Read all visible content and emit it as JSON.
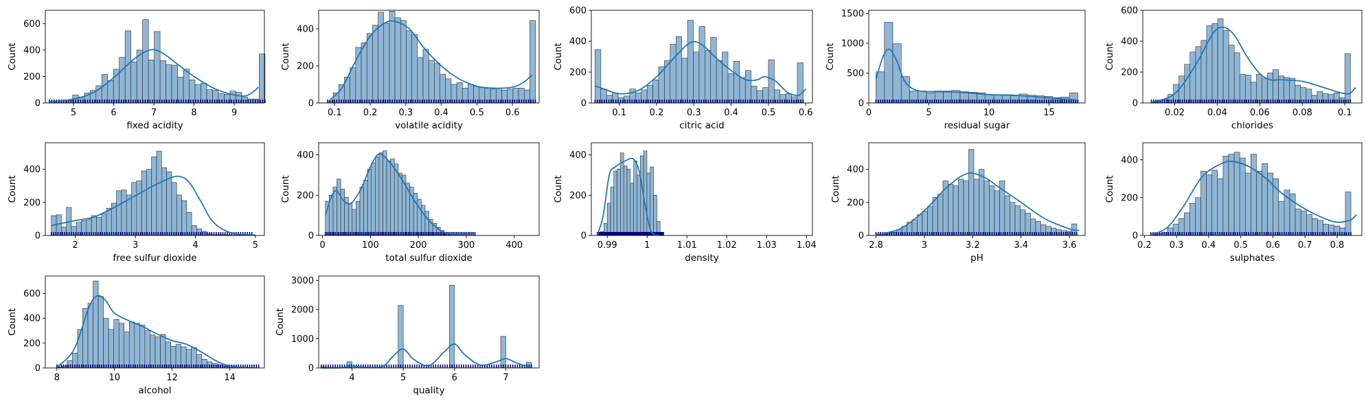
{
  "colors": {
    "bar_fill": "#8fb6d6",
    "bar_edge": "#2b2b2b",
    "kde": "#1f77b4",
    "rug": "#000080"
  },
  "chart_data": [
    {
      "type": "bar",
      "xlabel": "fixed acidity",
      "ylabel": "Count",
      "xlim": [
        4.3,
        9.75
      ],
      "ylim": [
        0,
        700
      ],
      "xticks": [
        5,
        6,
        7,
        8,
        9
      ],
      "yticks": [
        0,
        200,
        400,
        600
      ],
      "bin_start": 4.4,
      "bin_width": 0.145,
      "values": [
        10,
        15,
        18,
        20,
        60,
        45,
        75,
        95,
        130,
        215,
        170,
        255,
        345,
        545,
        310,
        400,
        630,
        325,
        540,
        320,
        290,
        285,
        195,
        255,
        175,
        140,
        150,
        100,
        95,
        70,
        65,
        90,
        80,
        45,
        30,
        30,
        370
      ],
      "kde": [
        [
          4.4,
          10
        ],
        [
          5.0,
          30
        ],
        [
          5.5,
          80
        ],
        [
          6.0,
          190
        ],
        [
          6.5,
          330
        ],
        [
          6.9,
          400
        ],
        [
          7.2,
          380
        ],
        [
          7.6,
          290
        ],
        [
          8.0,
          200
        ],
        [
          8.5,
          110
        ],
        [
          9.0,
          60
        ],
        [
          9.3,
          55
        ],
        [
          9.5,
          90
        ],
        [
          9.6,
          120
        ]
      ]
    },
    {
      "type": "bar",
      "xlabel": "volatile acidity",
      "ylabel": "Count",
      "xlim": [
        0.055,
        0.675
      ],
      "ylim": [
        0,
        500
      ],
      "xticks": [
        0.1,
        0.2,
        0.3,
        0.4,
        0.5,
        0.6
      ],
      "yticks": [
        0,
        200,
        400
      ],
      "bin_start": 0.08,
      "bin_width": 0.0158,
      "values": [
        10,
        55,
        100,
        140,
        190,
        300,
        325,
        375,
        420,
        490,
        430,
        495,
        460,
        445,
        390,
        370,
        245,
        290,
        230,
        215,
        155,
        130,
        100,
        110,
        80,
        100,
        90,
        85,
        80,
        75,
        80,
        70,
        75,
        80,
        80,
        70,
        445
      ],
      "kde": [
        [
          0.08,
          5
        ],
        [
          0.12,
          80
        ],
        [
          0.16,
          230
        ],
        [
          0.2,
          360
        ],
        [
          0.24,
          430
        ],
        [
          0.27,
          440
        ],
        [
          0.31,
          400
        ],
        [
          0.35,
          300
        ],
        [
          0.4,
          200
        ],
        [
          0.45,
          130
        ],
        [
          0.5,
          90
        ],
        [
          0.55,
          80
        ],
        [
          0.6,
          85
        ],
        [
          0.63,
          110
        ],
        [
          0.655,
          150
        ]
      ]
    },
    {
      "type": "bar",
      "xlabel": "citric acid",
      "ylabel": "Count",
      "xlim": [
        0.025,
        0.618
      ],
      "ylim": [
        0,
        600
      ],
      "xticks": [
        0.1,
        0.2,
        0.3,
        0.4,
        0.5,
        0.6
      ],
      "yticks": [
        0,
        200,
        400,
        600
      ],
      "bin_start": 0.035,
      "bin_width": 0.0155,
      "values": [
        345,
        90,
        50,
        65,
        35,
        45,
        90,
        65,
        85,
        115,
        150,
        235,
        275,
        380,
        430,
        290,
        535,
        330,
        495,
        340,
        425,
        275,
        330,
        190,
        270,
        165,
        210,
        110,
        80,
        100,
        280,
        85,
        55,
        60,
        40,
        260
      ],
      "kde": [
        [
          0.035,
          110
        ],
        [
          0.06,
          90
        ],
        [
          0.1,
          60
        ],
        [
          0.15,
          80
        ],
        [
          0.2,
          170
        ],
        [
          0.25,
          300
        ],
        [
          0.29,
          390
        ],
        [
          0.32,
          380
        ],
        [
          0.36,
          290
        ],
        [
          0.4,
          210
        ],
        [
          0.44,
          150
        ],
        [
          0.47,
          150
        ],
        [
          0.49,
          170
        ],
        [
          0.52,
          140
        ],
        [
          0.55,
          70
        ],
        [
          0.58,
          50
        ],
        [
          0.6,
          90
        ]
      ]
    },
    {
      "type": "bar",
      "xlabel": "residual sugar",
      "ylabel": "Count",
      "xlim": [
        0,
        18
      ],
      "ylim": [
        0,
        1550
      ],
      "xticks": [
        0,
        5,
        10,
        15
      ],
      "yticks": [
        0,
        500,
        1000,
        1500
      ],
      "bin_start": 0.6,
      "bin_width": 0.7,
      "values": [
        520,
        1350,
        990,
        440,
        200,
        200,
        170,
        200,
        200,
        210,
        190,
        180,
        170,
        140,
        130,
        140,
        120,
        150,
        130,
        120,
        110,
        90,
        100,
        170
      ],
      "kde": [
        [
          0.6,
          400
        ],
        [
          1.2,
          780
        ],
        [
          1.7,
          900
        ],
        [
          2.3,
          720
        ],
        [
          3.0,
          360
        ],
        [
          4.0,
          210
        ],
        [
          5.5,
          190
        ],
        [
          7.5,
          180
        ],
        [
          10,
          140
        ],
        [
          12,
          130
        ],
        [
          14,
          100
        ],
        [
          16,
          70
        ],
        [
          17.4,
          50
        ]
      ]
    },
    {
      "type": "bar",
      "xlabel": "chlorides",
      "ylabel": "Count",
      "xlim": [
        0.005,
        0.108
      ],
      "ylim": [
        0,
        600
      ],
      "xticks": [
        0.02,
        0.04,
        0.06,
        0.08,
        0.1
      ],
      "yticks": [
        0,
        200,
        400,
        600
      ],
      "bin_start": 0.009,
      "bin_width": 0.0026,
      "values": [
        5,
        10,
        25,
        55,
        120,
        175,
        250,
        330,
        365,
        405,
        500,
        515,
        545,
        470,
        375,
        325,
        185,
        180,
        135,
        185,
        160,
        195,
        215,
        175,
        165,
        160,
        115,
        100,
        90,
        50,
        75,
        60,
        55,
        65,
        35,
        320
      ],
      "kde": [
        [
          0.009,
          5
        ],
        [
          0.02,
          60
        ],
        [
          0.03,
          250
        ],
        [
          0.038,
          450
        ],
        [
          0.043,
          490
        ],
        [
          0.048,
          440
        ],
        [
          0.054,
          300
        ],
        [
          0.06,
          190
        ],
        [
          0.065,
          150
        ],
        [
          0.07,
          150
        ],
        [
          0.08,
          140
        ],
        [
          0.09,
          100
        ],
        [
          0.097,
          70
        ],
        [
          0.102,
          60
        ],
        [
          0.105,
          100
        ]
      ]
    },
    {
      "type": "bar",
      "xlabel": "free sulfur dioxide",
      "ylabel": "Count",
      "xlim": [
        1.5,
        5.15
      ],
      "ylim": [
        0,
        560
      ],
      "xticks": [
        2,
        3,
        4,
        5
      ],
      "yticks": [
        0,
        200,
        400
      ],
      "bin_start": 1.6,
      "bin_width": 0.0835,
      "values": [
        120,
        125,
        50,
        170,
        55,
        80,
        90,
        100,
        120,
        110,
        130,
        165,
        195,
        270,
        275,
        245,
        320,
        330,
        390,
        400,
        475,
        510,
        410,
        385,
        320,
        245,
        210,
        140,
        60,
        40,
        25,
        10,
        5,
        5,
        5,
        3,
        2,
        2,
        1,
        1
      ],
      "kde": [
        [
          1.6,
          60
        ],
        [
          2.0,
          90
        ],
        [
          2.3,
          110
        ],
        [
          2.6,
          160
        ],
        [
          3.0,
          240
        ],
        [
          3.3,
          300
        ],
        [
          3.6,
          350
        ],
        [
          3.75,
          355
        ],
        [
          3.9,
          320
        ],
        [
          4.1,
          200
        ],
        [
          4.3,
          80
        ],
        [
          4.6,
          15
        ],
        [
          5.0,
          2
        ]
      ]
    },
    {
      "type": "bar",
      "xlabel": "total sulfur dioxide",
      "ylabel": "Count",
      "xlim": [
        -8,
        452
      ],
      "ylim": [
        0,
        460
      ],
      "xticks": [
        0,
        100,
        200,
        300,
        400
      ],
      "yticks": [
        0,
        200,
        400
      ],
      "bin_start": 6,
      "bin_width": 8.0,
      "values": [
        170,
        200,
        240,
        280,
        230,
        190,
        160,
        130,
        170,
        240,
        275,
        330,
        360,
        390,
        410,
        420,
        370,
        380,
        355,
        310,
        300,
        260,
        240,
        210,
        180,
        150,
        120,
        80,
        60,
        40,
        25,
        15,
        10,
        8,
        5,
        5,
        4,
        3,
        2
      ],
      "kde": [
        [
          6,
          100
        ],
        [
          20,
          200
        ],
        [
          30,
          220
        ],
        [
          45,
          170
        ],
        [
          60,
          160
        ],
        [
          80,
          230
        ],
        [
          100,
          340
        ],
        [
          115,
          400
        ],
        [
          130,
          390
        ],
        [
          160,
          300
        ],
        [
          190,
          180
        ],
        [
          220,
          80
        ],
        [
          250,
          20
        ],
        [
          280,
          5
        ],
        [
          320,
          1
        ]
      ]
    },
    {
      "type": "bar",
      "xlabel": "density",
      "ylabel": "Count",
      "xlim": [
        0.986,
        1.0415
      ],
      "ylim": [
        0,
        460
      ],
      "xticks": [
        0.99,
        1.0,
        1.01,
        1.02,
        1.03,
        1.04
      ],
      "yticks": [
        0,
        200,
        400
      ],
      "bin_start": 0.9875,
      "bin_width": 0.00083,
      "values": [
        3,
        20,
        60,
        160,
        240,
        320,
        330,
        410,
        345,
        330,
        260,
        370,
        300,
        395,
        420,
        310,
        340,
        200,
        70,
        10
      ],
      "kde": [
        [
          0.9875,
          2
        ],
        [
          0.989,
          100
        ],
        [
          0.9905,
          300
        ],
        [
          0.992,
          340
        ],
        [
          0.9945,
          370
        ],
        [
          0.9965,
          380
        ],
        [
          0.998,
          320
        ],
        [
          0.9995,
          150
        ],
        [
          1.001,
          20
        ],
        [
          1.003,
          2
        ]
      ]
    },
    {
      "type": "bar",
      "xlabel": "pH",
      "ylabel": "Count",
      "xlim": [
        2.77,
        3.665
      ],
      "ylim": [
        0,
        560
      ],
      "xticks": [
        2.8,
        3.0,
        3.2,
        3.4,
        3.6
      ],
      "yticks": [
        0,
        200,
        400
      ],
      "bin_start": 2.8,
      "bin_width": 0.0213,
      "values": [
        3,
        8,
        15,
        20,
        35,
        55,
        80,
        95,
        125,
        145,
        175,
        230,
        250,
        330,
        310,
        300,
        340,
        330,
        520,
        340,
        400,
        330,
        300,
        270,
        330,
        240,
        200,
        180,
        155,
        135,
        100,
        85,
        65,
        55,
        45,
        35,
        30,
        25,
        70
      ],
      "kde": [
        [
          2.8,
          5
        ],
        [
          2.9,
          40
        ],
        [
          3.0,
          150
        ],
        [
          3.1,
          300
        ],
        [
          3.18,
          375
        ],
        [
          3.25,
          350
        ],
        [
          3.3,
          300
        ],
        [
          3.4,
          200
        ],
        [
          3.5,
          100
        ],
        [
          3.6,
          40
        ],
        [
          3.64,
          30
        ]
      ]
    },
    {
      "type": "bar",
      "xlabel": "sulphates",
      "ylabel": "Count",
      "xlim": [
        0.195,
        0.877
      ],
      "ylim": [
        0,
        490
      ],
      "xticks": [
        0.2,
        0.3,
        0.4,
        0.5,
        0.6,
        0.7,
        0.8
      ],
      "yticks": [
        0,
        200,
        400
      ],
      "bin_start": 0.22,
      "bin_width": 0.0173,
      "values": [
        5,
        10,
        15,
        40,
        60,
        90,
        120,
        170,
        200,
        340,
        320,
        345,
        300,
        420,
        430,
        440,
        410,
        330,
        430,
        340,
        380,
        330,
        300,
        180,
        240,
        220,
        140,
        130,
        110,
        90,
        80,
        60,
        55,
        50,
        40,
        230
      ],
      "kde": [
        [
          0.22,
          5
        ],
        [
          0.27,
          40
        ],
        [
          0.32,
          150
        ],
        [
          0.38,
          310
        ],
        [
          0.44,
          380
        ],
        [
          0.48,
          390
        ],
        [
          0.53,
          360
        ],
        [
          0.58,
          300
        ],
        [
          0.63,
          220
        ],
        [
          0.7,
          140
        ],
        [
          0.76,
          90
        ],
        [
          0.8,
          70
        ],
        [
          0.84,
          80
        ],
        [
          0.86,
          110
        ]
      ]
    },
    {
      "type": "bar",
      "xlabel": "alcohol",
      "ylabel": "Count",
      "xlim": [
        7.6,
        15.2
      ],
      "ylim": [
        0,
        740
      ],
      "xticks": [
        8,
        10,
        12,
        14
      ],
      "yticks": [
        0,
        200,
        400,
        600
      ],
      "bin_start": 8.0,
      "bin_width": 0.1795,
      "values": [
        5,
        15,
        60,
        120,
        310,
        480,
        520,
        700,
        575,
        400,
        310,
        390,
        360,
        290,
        370,
        360,
        345,
        300,
        265,
        250,
        270,
        210,
        175,
        190,
        170,
        150,
        165,
        110,
        70,
        50,
        35,
        25,
        15,
        12,
        8,
        5,
        3,
        2,
        1
      ],
      "kde": [
        [
          8.0,
          5
        ],
        [
          8.6,
          150
        ],
        [
          9.1,
          480
        ],
        [
          9.4,
          580
        ],
        [
          9.7,
          540
        ],
        [
          10.0,
          440
        ],
        [
          10.5,
          380
        ],
        [
          11.0,
          330
        ],
        [
          11.5,
          270
        ],
        [
          12.0,
          220
        ],
        [
          12.5,
          190
        ],
        [
          13.0,
          130
        ],
        [
          13.5,
          60
        ],
        [
          14.0,
          15
        ],
        [
          14.6,
          3
        ]
      ]
    },
    {
      "type": "bar",
      "xlabel": "quality",
      "ylabel": "Count",
      "xlim": [
        3.35,
        7.65
      ],
      "ylim": [
        0,
        3150
      ],
      "xticks": [
        4,
        5,
        6,
        7
      ],
      "yticks": [
        0,
        1000,
        2000,
        3000
      ],
      "bin_width": 0.1,
      "bars": [
        {
          "x": 3.45,
          "value": 30
        },
        {
          "x": 3.95,
          "value": 215
        },
        {
          "x": 4.95,
          "value": 2140
        },
        {
          "x": 5.95,
          "value": 2835
        },
        {
          "x": 6.95,
          "value": 1080
        },
        {
          "x": 7.45,
          "value": 195
        }
      ],
      "kde": [
        [
          3.4,
          0
        ],
        [
          3.8,
          10
        ],
        [
          4.0,
          60
        ],
        [
          4.3,
          15
        ],
        [
          4.6,
          50
        ],
        [
          4.8,
          400
        ],
        [
          5.0,
          650
        ],
        [
          5.2,
          300
        ],
        [
          5.5,
          80
        ],
        [
          5.8,
          550
        ],
        [
          6.0,
          820
        ],
        [
          6.2,
          450
        ],
        [
          6.5,
          100
        ],
        [
          6.8,
          200
        ],
        [
          7.0,
          320
        ],
        [
          7.2,
          180
        ],
        [
          7.4,
          60
        ],
        [
          7.5,
          40
        ]
      ]
    }
  ]
}
